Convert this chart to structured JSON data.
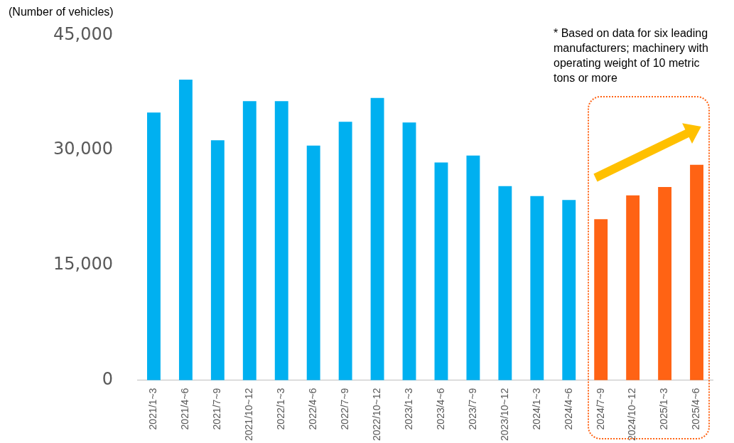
{
  "chart_data": {
    "type": "bar",
    "ylabel": "(Number of vehicles)",
    "categories": [
      "2021/1~3",
      "2021/4~6",
      "2021/7~9",
      "2021/10~12",
      "2022/1~3",
      "2022/4~6",
      "2022/7~9",
      "2022/10~12",
      "2023/1~3",
      "2023/4~6",
      "2023/7~9",
      "2023/10~12",
      "2024/1~3",
      "2024/4~6",
      "2024/7~9",
      "2024/10~12",
      "2025/1~3",
      "2025/4~6"
    ],
    "values": [
      34900,
      39200,
      31300,
      36400,
      36400,
      30600,
      33700,
      36800,
      33600,
      28400,
      29300,
      25300,
      24000,
      23500,
      21000,
      24100,
      25200,
      28100
    ],
    "colors": [
      "#00b0f0",
      "#00b0f0",
      "#00b0f0",
      "#00b0f0",
      "#00b0f0",
      "#00b0f0",
      "#00b0f0",
      "#00b0f0",
      "#00b0f0",
      "#00b0f0",
      "#00b0f0",
      "#00b0f0",
      "#00b0f0",
      "#00b0f0",
      "#ff6314",
      "#ff6314",
      "#ff6314",
      "#ff6314"
    ],
    "ylim": [
      0,
      45000
    ],
    "yticks": [
      0,
      {
        "value": 15000,
        "label": "15,000"
      },
      {
        "value": 30000,
        "label": "30,000"
      },
      {
        "value": 45000,
        "label": "45,000"
      }
    ],
    "grid": false,
    "legend": false,
    "annotations": [
      "* Based on data for six leading manufacturers; machinery with operating weight of 10 metric tons or more"
    ]
  }
}
